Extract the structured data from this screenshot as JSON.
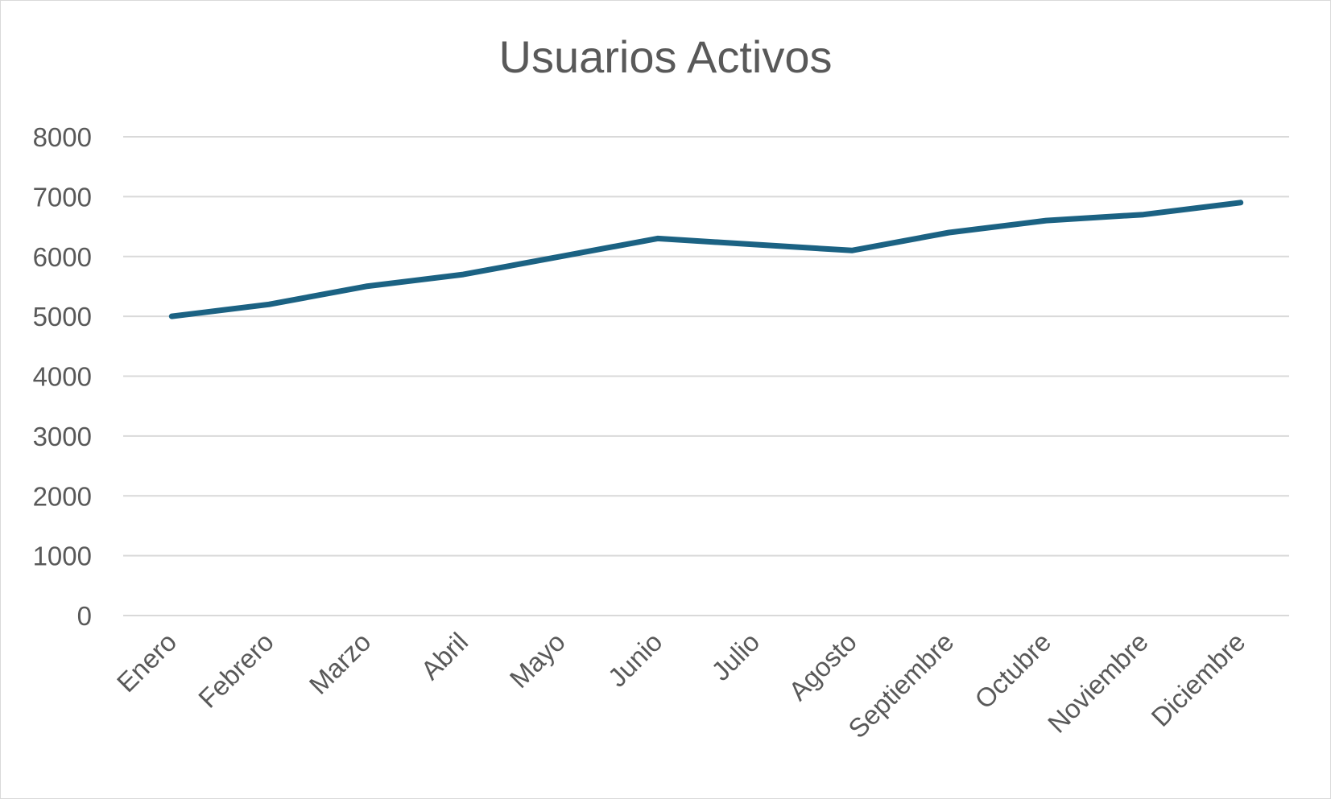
{
  "chart_data": {
    "type": "line",
    "title": "Usuarios Activos",
    "xlabel": "",
    "ylabel": "",
    "categories": [
      "Enero",
      "Febrero",
      "Marzo",
      "Abril",
      "Mayo",
      "Junio",
      "Julio",
      "Agosto",
      "Septiembre",
      "Octubre",
      "Noviembre",
      "Diciembre"
    ],
    "series": [
      {
        "values": [
          5000,
          5200,
          5500,
          5700,
          6000,
          6300,
          6200,
          6100,
          6400,
          6600,
          6700,
          6900
        ],
        "color": "#1b6283"
      }
    ],
    "ylim": [
      0,
      8000
    ],
    "yticks": [
      0,
      1000,
      2000,
      3000,
      4000,
      5000,
      6000,
      7000,
      8000
    ],
    "grid": true,
    "legend": "none"
  }
}
